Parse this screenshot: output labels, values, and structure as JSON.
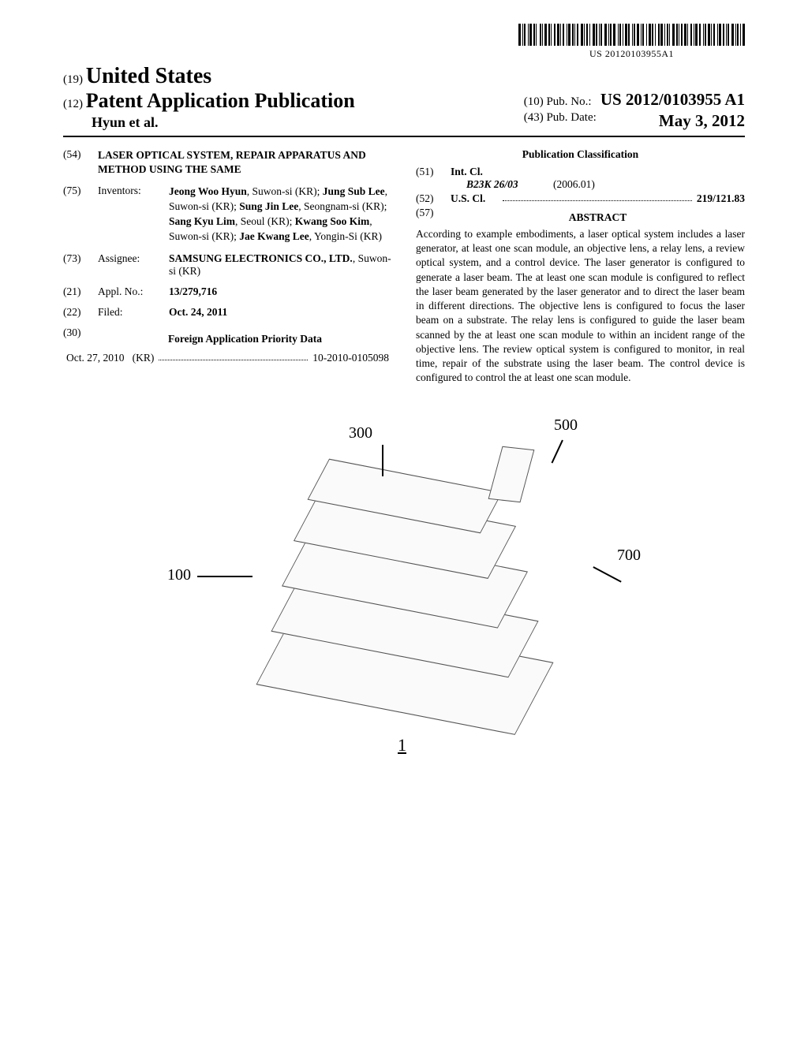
{
  "barcode_text": "US 20120103955A1",
  "header": {
    "code19": "(19)",
    "country": "United States",
    "code12": "(12)",
    "pub_type": "Patent Application Publication",
    "authors": "Hyun et al.",
    "code10": "(10)",
    "pub_no_label": "Pub. No.:",
    "pub_no": "US 2012/0103955 A1",
    "code43": "(43)",
    "pub_date_label": "Pub. Date:",
    "pub_date": "May 3, 2012"
  },
  "title": {
    "code": "(54)",
    "text": "LASER OPTICAL SYSTEM, REPAIR APPARATUS AND METHOD USING THE SAME"
  },
  "inventors": {
    "code": "(75)",
    "label": "Inventors:",
    "list": [
      {
        "name": "Jeong Woo Hyun",
        "loc": ", Suwon-si (KR);"
      },
      {
        "name": "Jung Sub Lee",
        "loc": ", Suwon-si (KR);"
      },
      {
        "name": "Sung Jin Lee",
        "loc": ", Seongnam-si (KR);"
      },
      {
        "name": "Sang Kyu Lim",
        "loc": ", Seoul (KR);"
      },
      {
        "name": "Kwang Soo Kim",
        "loc": ", Suwon-si (KR);"
      },
      {
        "name": "Jae Kwang Lee",
        "loc": ", Yongin-Si (KR)"
      }
    ]
  },
  "assignee": {
    "code": "(73)",
    "label": "Assignee:",
    "name": "SAMSUNG ELECTRONICS CO., LTD.",
    "loc": ", Suwon-si (KR)"
  },
  "appl_no": {
    "code": "(21)",
    "label": "Appl. No.:",
    "value": "13/279,716"
  },
  "filed": {
    "code": "(22)",
    "label": "Filed:",
    "value": "Oct. 24, 2011"
  },
  "foreign_priority": {
    "code": "(30)",
    "heading": "Foreign Application Priority Data",
    "date": "Oct. 27, 2010",
    "country": "(KR)",
    "number": "10-2010-0105098"
  },
  "classification": {
    "heading": "Publication Classification",
    "intcl": {
      "code": "(51)",
      "label": "Int. Cl.",
      "symbol": "B23K 26/03",
      "edition": "(2006.01)"
    },
    "uscl": {
      "code": "(52)",
      "label": "U.S. Cl.",
      "value": "219/121.83"
    }
  },
  "abstract": {
    "code": "(57)",
    "heading": "ABSTRACT",
    "text": "According to example embodiments, a laser optical system includes a laser generator, at least one scan module, an objective lens, a relay lens, a review optical system, and a control device. The laser generator is configured to generate a laser beam. The at least one scan module is configured to reflect the laser beam generated by the laser generator and to direct the laser beam in different directions. The objective lens is configured to focus the laser beam on a substrate. The relay lens is configured to guide the laser beam scanned by the at least one scan module to within an incident range of the objective lens. The review optical system is configured to monitor, in real time, repair of the substrate using the laser beam. The control device is configured to control the at least one scan module."
  },
  "figure": {
    "labels": {
      "l100": "100",
      "l300": "300",
      "l500": "500",
      "l700": "700",
      "l1": "1"
    }
  },
  "colors": {
    "text": "#000000",
    "background": "#ffffff",
    "line": "#555555"
  }
}
